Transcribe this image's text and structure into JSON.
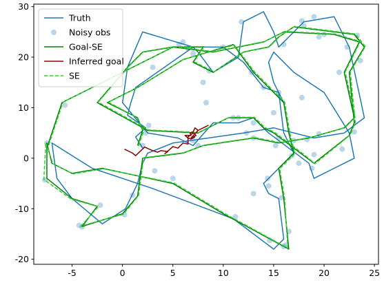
{
  "chart_data": {
    "type": "line",
    "title": "",
    "xlabel": "",
    "ylabel": "",
    "xlim": [
      -8.8,
      25.4
    ],
    "ylim": [
      -21,
      30.5
    ],
    "xticks": [
      -5,
      0,
      5,
      10,
      15,
      20,
      25
    ],
    "yticks": [
      -20,
      -10,
      0,
      10,
      20,
      30
    ],
    "grid": false,
    "legend_position": "top-left",
    "legend": [
      {
        "label": "Truth",
        "kind": "line",
        "color": "#1f77b4"
      },
      {
        "label": "Noisy obs",
        "kind": "marker",
        "color": "#1f77b4"
      },
      {
        "label": "Goal-SE",
        "kind": "line",
        "color": "#008000"
      },
      {
        "label": "Inferred goal",
        "kind": "line",
        "color": "#8b0000"
      },
      {
        "label": "SE",
        "kind": "dashed",
        "color": "#32cd32"
      }
    ],
    "series": [
      {
        "name": "Truth",
        "color": "#1f77b4",
        "style": "solid",
        "points": [
          [
            2,
            2
          ],
          [
            1.3,
            4.2
          ],
          [
            2.3,
            6
          ],
          [
            0.5,
            8.5
          ],
          [
            0.8,
            10.8
          ],
          [
            1.3,
            14
          ],
          [
            6.3,
            21
          ],
          [
            7,
            22
          ],
          [
            10,
            22
          ],
          [
            12,
            19
          ],
          [
            14,
            14
          ],
          [
            15.5,
            13
          ],
          [
            16,
            5
          ],
          [
            17,
            1
          ],
          [
            16.5,
            0
          ],
          [
            14,
            -5
          ],
          [
            14.5,
            -7
          ],
          [
            15.5,
            -8
          ],
          [
            16,
            -16
          ],
          [
            15,
            -18
          ],
          [
            11,
            -12
          ],
          [
            3,
            -6
          ],
          [
            -3,
            -2
          ],
          [
            -7,
            3
          ],
          [
            -6.5,
            -4
          ],
          [
            -5,
            -8
          ],
          [
            -2,
            -13
          ],
          [
            0.3,
            -10
          ],
          [
            1.5,
            -5
          ],
          [
            2,
            -1
          ],
          [
            2.5,
            1
          ],
          [
            5,
            3
          ],
          [
            12,
            5
          ],
          [
            15,
            6
          ],
          [
            19,
            4
          ],
          [
            22,
            5
          ],
          [
            24,
            8
          ],
          [
            22.5,
            22
          ],
          [
            21,
            28
          ],
          [
            18,
            27
          ],
          [
            15.5,
            22
          ],
          [
            15,
            25
          ],
          [
            14,
            29
          ],
          [
            12,
            27
          ],
          [
            11.5,
            20
          ],
          [
            9,
            17
          ],
          [
            7.5,
            21
          ],
          [
            7,
            22
          ],
          [
            2,
            25
          ],
          [
            0.5,
            18
          ],
          [
            0,
            11
          ],
          [
            2.5,
            5
          ],
          [
            5.5,
            4
          ],
          [
            7,
            2.5
          ],
          [
            9,
            7
          ],
          [
            11.5,
            7
          ],
          [
            13,
            8
          ],
          [
            14.5,
            5
          ],
          [
            18.5,
            -1
          ],
          [
            19,
            -4
          ],
          [
            21,
            -2
          ],
          [
            23,
            0
          ],
          [
            22.5,
            5
          ],
          [
            20,
            13
          ],
          [
            17,
            17
          ],
          [
            15,
            21
          ],
          [
            14.5,
            19
          ],
          [
            15,
            15
          ],
          [
            16,
            11
          ]
        ]
      },
      {
        "name": "Goal-SE",
        "color": "#008000",
        "style": "solid",
        "points": [
          [
            1.5,
            2.5
          ],
          [
            2,
            5.5
          ],
          [
            1.5,
            8
          ],
          [
            -1.5,
            11
          ],
          [
            1.5,
            14
          ],
          [
            6,
            19.5
          ],
          [
            11,
            22.5
          ],
          [
            13,
            17
          ],
          [
            15,
            13
          ],
          [
            16,
            11
          ],
          [
            16.5,
            5
          ],
          [
            17,
            1
          ],
          [
            15.5,
            -2
          ],
          [
            16,
            -8
          ],
          [
            16.5,
            -18
          ],
          [
            10,
            -11
          ],
          [
            5,
            -5
          ],
          [
            -2,
            -2
          ],
          [
            -5,
            -3
          ],
          [
            -7,
            -1
          ],
          [
            -7.5,
            3
          ],
          [
            -7.5,
            -4
          ],
          [
            -5,
            -8
          ],
          [
            -2.5,
            -9.5
          ],
          [
            -4,
            -13.5
          ],
          [
            0,
            -11
          ],
          [
            1.5,
            -7.5
          ],
          [
            2,
            0
          ],
          [
            6,
            1
          ],
          [
            8,
            2.5
          ],
          [
            13,
            4
          ],
          [
            15.5,
            3
          ],
          [
            18.5,
            4
          ],
          [
            22,
            6
          ],
          [
            23,
            8
          ],
          [
            22,
            17
          ],
          [
            23.5,
            23
          ],
          [
            21,
            24.5
          ],
          [
            16,
            25
          ],
          [
            14,
            23
          ],
          [
            9,
            21
          ],
          [
            5,
            22
          ],
          [
            2,
            21
          ],
          [
            0.5,
            18
          ],
          [
            -2.5,
            11
          ],
          [
            2.5,
            5.5
          ],
          [
            7.5,
            5
          ],
          [
            8.5,
            6
          ],
          [
            10.5,
            8
          ],
          [
            13,
            8
          ],
          [
            14,
            6
          ],
          [
            15,
            5
          ],
          [
            18,
            0.5
          ],
          [
            19,
            -1
          ],
          [
            22.5,
            4.5
          ],
          [
            23,
            7
          ],
          [
            22.5,
            17
          ],
          [
            24,
            22
          ],
          [
            23,
            24.5
          ],
          [
            17,
            26
          ],
          [
            15.5,
            24
          ],
          [
            14.5,
            22
          ],
          [
            12,
            21
          ],
          [
            9,
            17
          ],
          [
            7,
            19
          ],
          [
            8,
            22
          ],
          [
            5,
            22
          ],
          [
            -6,
            11
          ],
          [
            -7.5,
            2
          ]
        ]
      },
      {
        "name": "SE",
        "color": "#32cd32",
        "style": "dashed",
        "points": [
          [
            1.6,
            2.4
          ],
          [
            2.1,
            5.4
          ],
          [
            1.4,
            8.1
          ],
          [
            -1.4,
            11.1
          ],
          [
            1.6,
            14.1
          ],
          [
            6.1,
            19.6
          ],
          [
            11.1,
            22.4
          ],
          [
            13.1,
            17.1
          ],
          [
            15.1,
            13.1
          ],
          [
            16.1,
            11.1
          ],
          [
            16.6,
            5.1
          ],
          [
            17.1,
            0.9
          ],
          [
            15.6,
            -2.1
          ],
          [
            16.1,
            -8.1
          ],
          [
            16.4,
            -17.8
          ],
          [
            10.1,
            -10.9
          ],
          [
            5.1,
            -4.9
          ],
          [
            -1.9,
            -2.1
          ],
          [
            -4.9,
            -3.1
          ],
          [
            -6.9,
            -1.1
          ],
          [
            -7.6,
            3.1
          ],
          [
            -7.8,
            -4.2
          ],
          [
            -5.1,
            -8.1
          ],
          [
            -2.4,
            -9.6
          ],
          [
            -4.1,
            -13.4
          ],
          [
            0.1,
            -11.1
          ],
          [
            1.6,
            -7.4
          ],
          [
            2.1,
            0.1
          ],
          [
            6.1,
            1.1
          ],
          [
            8.1,
            2.6
          ],
          [
            13.1,
            4.1
          ],
          [
            15.6,
            3.1
          ],
          [
            18.6,
            4.1
          ],
          [
            22.1,
            6.1
          ],
          [
            23.1,
            8.1
          ],
          [
            22.1,
            17.1
          ],
          [
            23.6,
            23.1
          ],
          [
            21.1,
            24.6
          ],
          [
            16.1,
            25.1
          ],
          [
            14.1,
            23.1
          ],
          [
            9.1,
            21.1
          ],
          [
            5.1,
            22.1
          ],
          [
            2.1,
            21.1
          ],
          [
            0.6,
            18.1
          ],
          [
            -2.4,
            11.1
          ],
          [
            2.6,
            5.6
          ],
          [
            7.6,
            5.1
          ],
          [
            8.6,
            6.1
          ],
          [
            10.6,
            8.1
          ],
          [
            13.1,
            8.1
          ],
          [
            14.1,
            6.1
          ],
          [
            15.1,
            5.1
          ],
          [
            18.1,
            0.6
          ],
          [
            19.1,
            -1.1
          ],
          [
            22.6,
            4.6
          ],
          [
            23.1,
            7.1
          ],
          [
            22.6,
            17.1
          ],
          [
            24.1,
            22.1
          ],
          [
            23.1,
            24.6
          ],
          [
            17.1,
            26.1
          ],
          [
            15.6,
            24.1
          ],
          [
            14.6,
            22.1
          ],
          [
            12.1,
            21.1
          ],
          [
            9.1,
            17.1
          ],
          [
            7.1,
            19.1
          ],
          [
            8.1,
            22.1
          ],
          [
            5.1,
            22.1
          ],
          [
            -5.9,
            11.1
          ],
          [
            -7.4,
            2.1
          ]
        ]
      },
      {
        "name": "Inferred goal",
        "color": "#8b0000",
        "style": "solid",
        "points": [
          [
            0.2,
            1.8
          ],
          [
            1,
            1
          ],
          [
            1.3,
            0.5
          ],
          [
            2.2,
            2.2
          ],
          [
            3,
            1.5
          ],
          [
            3.5,
            1.2
          ],
          [
            3.8,
            1.5
          ],
          [
            4.5,
            1.3
          ],
          [
            4.2,
            0.9
          ],
          [
            5,
            2.3
          ],
          [
            5.5,
            2
          ],
          [
            6,
            3
          ],
          [
            6.5,
            2.8
          ],
          [
            6.5,
            4.2
          ],
          [
            7,
            5
          ],
          [
            7.3,
            4.5
          ],
          [
            6.8,
            4
          ],
          [
            7.5,
            5.5
          ],
          [
            8,
            6
          ],
          [
            8.5,
            6.5
          ],
          [
            8,
            6
          ],
          [
            7.5,
            5.5
          ],
          [
            7.2,
            6
          ],
          [
            7,
            5.2
          ],
          [
            6.7,
            5
          ],
          [
            6.8,
            4.5
          ],
          [
            6.2,
            4.5
          ],
          [
            6.5,
            4
          ],
          [
            6.8,
            3.8
          ],
          [
            7.2,
            4.2
          ]
        ]
      }
    ],
    "observations": {
      "name": "Noisy obs",
      "color": "#1f77b4",
      "points": [
        [
          -7.7,
          -4.3
        ],
        [
          -7.5,
          3
        ],
        [
          -5.7,
          10.5
        ],
        [
          -4.3,
          -13.3
        ],
        [
          -4,
          -13.6
        ],
        [
          -2.2,
          -9.3
        ],
        [
          0.2,
          -11.2
        ],
        [
          1,
          -7.3
        ],
        [
          2,
          2.5
        ],
        [
          2.3,
          5
        ],
        [
          2.6,
          6.5
        ],
        [
          3,
          18
        ],
        [
          3.2,
          -2.5
        ],
        [
          5,
          -4
        ],
        [
          5.6,
          22.5
        ],
        [
          6,
          23
        ],
        [
          6.5,
          21.7
        ],
        [
          7,
          20.7
        ],
        [
          7,
          3.5
        ],
        [
          7.5,
          2.5
        ],
        [
          8,
          15
        ],
        [
          8.3,
          11
        ],
        [
          8.6,
          17.3
        ],
        [
          10,
          22
        ],
        [
          11,
          8
        ],
        [
          11.2,
          -11.6
        ],
        [
          11.5,
          8
        ],
        [
          11.8,
          27
        ],
        [
          12.3,
          5
        ],
        [
          12.8,
          17
        ],
        [
          13,
          -7
        ],
        [
          13,
          4
        ],
        [
          13,
          7
        ],
        [
          14,
          14
        ],
        [
          14.4,
          -4
        ],
        [
          14.5,
          -5.5
        ],
        [
          14.6,
          -16.3
        ],
        [
          15,
          9
        ],
        [
          15.2,
          2.5
        ],
        [
          15.5,
          13
        ],
        [
          15.5,
          4
        ],
        [
          15.8,
          -7.8
        ],
        [
          16,
          22.5
        ],
        [
          16,
          -17.5
        ],
        [
          16.2,
          -17.2
        ],
        [
          16.5,
          -14.5
        ],
        [
          16.8,
          0.5
        ],
        [
          17,
          3.5
        ],
        [
          17.5,
          -1
        ],
        [
          17.8,
          12
        ],
        [
          17.8,
          27.2
        ],
        [
          18,
          26.2
        ],
        [
          18.3,
          3.7
        ],
        [
          18.8,
          -2
        ],
        [
          19,
          28
        ],
        [
          19,
          0.7
        ],
        [
          19.5,
          4.8
        ],
        [
          19.5,
          24
        ],
        [
          20,
          24.5
        ],
        [
          21.8,
          1.8
        ],
        [
          22.3,
          22
        ],
        [
          23,
          5.2
        ],
        [
          23.3,
          24.3
        ],
        [
          23.6,
          19.3
        ],
        [
          21.5,
          17
        ]
      ]
    }
  }
}
